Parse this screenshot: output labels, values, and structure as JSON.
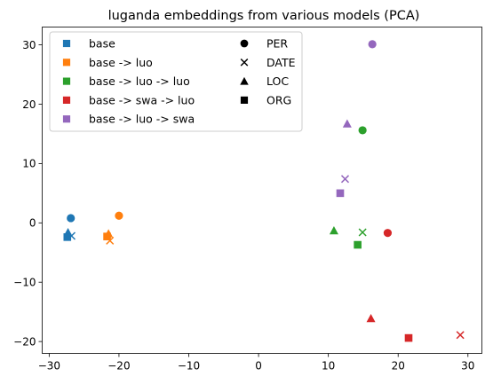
{
  "chart_data": {
    "type": "scatter",
    "title": "luganda embeddings from various models (PCA)",
    "xlabel": "",
    "ylabel": "",
    "xlim": [
      -31,
      32
    ],
    "ylim": [
      -22,
      33
    ],
    "xticks": [
      -30,
      -20,
      -10,
      0,
      10,
      20,
      30
    ],
    "yticks": [
      -20,
      -10,
      0,
      10,
      20,
      30
    ],
    "grid": false,
    "legend_position": "top-left",
    "series": [
      {
        "name": "base",
        "color": "#1f77b4",
        "points": [
          {
            "x": -26.9,
            "y": 0.8,
            "marker": "circle"
          },
          {
            "x": -26.8,
            "y": -2.2,
            "marker": "x"
          },
          {
            "x": -27.3,
            "y": -1.6,
            "marker": "triangle"
          },
          {
            "x": -27.4,
            "y": -2.4,
            "marker": "square"
          }
        ]
      },
      {
        "name": "base -> luo",
        "color": "#ff7f0e",
        "points": [
          {
            "x": -20.0,
            "y": 1.2,
            "marker": "circle"
          },
          {
            "x": -21.3,
            "y": -3.0,
            "marker": "x"
          },
          {
            "x": -21.5,
            "y": -1.8,
            "marker": "triangle"
          },
          {
            "x": -21.7,
            "y": -2.3,
            "marker": "square"
          }
        ]
      },
      {
        "name": "base -> luo -> luo",
        "color": "#2ca02c",
        "points": [
          {
            "x": 14.9,
            "y": 15.6,
            "marker": "circle"
          },
          {
            "x": 14.9,
            "y": -1.6,
            "marker": "x"
          },
          {
            "x": 10.8,
            "y": -1.3,
            "marker": "triangle"
          },
          {
            "x": 14.2,
            "y": -3.7,
            "marker": "square"
          }
        ]
      },
      {
        "name": "base -> swa -> luo",
        "color": "#d62728",
        "points": [
          {
            "x": 18.5,
            "y": -1.7,
            "marker": "circle"
          },
          {
            "x": 28.9,
            "y": -18.9,
            "marker": "x"
          },
          {
            "x": 16.1,
            "y": -16.1,
            "marker": "triangle"
          },
          {
            "x": 21.5,
            "y": -19.4,
            "marker": "square"
          }
        ]
      },
      {
        "name": "base -> luo -> swa",
        "color": "#9467bd",
        "points": [
          {
            "x": 16.3,
            "y": 30.1,
            "marker": "circle"
          },
          {
            "x": 12.4,
            "y": 7.4,
            "marker": "x"
          },
          {
            "x": 12.7,
            "y": 16.7,
            "marker": "triangle"
          },
          {
            "x": 11.7,
            "y": 5.0,
            "marker": "square"
          }
        ]
      }
    ],
    "marker_legend": [
      {
        "name": "PER",
        "marker": "circle"
      },
      {
        "name": "DATE",
        "marker": "x"
      },
      {
        "name": "LOC",
        "marker": "triangle"
      },
      {
        "name": "ORG",
        "marker": "square"
      }
    ]
  }
}
